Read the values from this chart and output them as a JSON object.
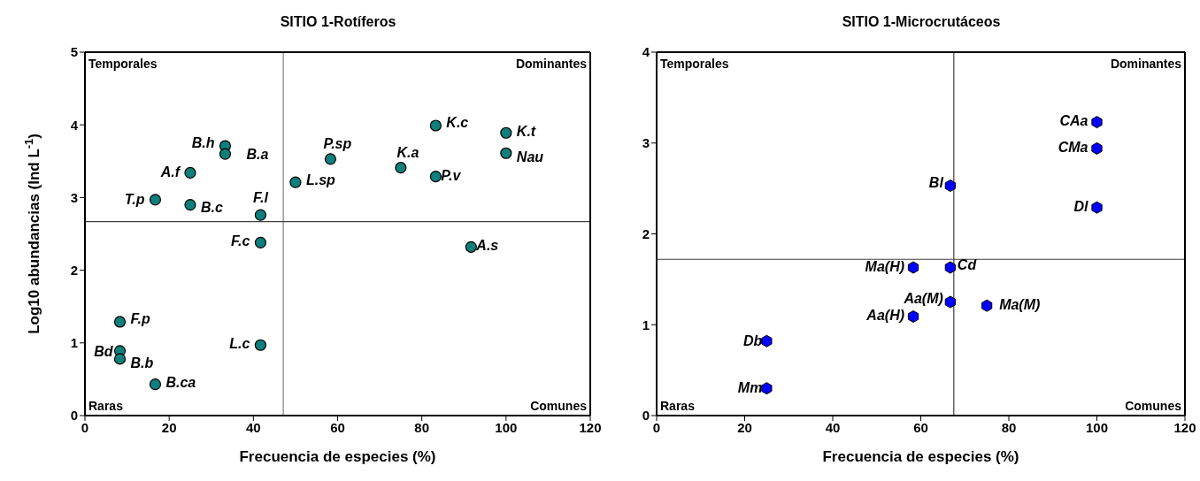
{
  "chart_data": [
    {
      "type": "scatter",
      "title": "SITIO 1-Rotíferos",
      "xlabel": "Frecuencia de especies (%)",
      "ylabel": "Log10 abundancias (Ind L$^{-1}$)",
      "xlim": [
        0,
        120
      ],
      "xticks": [
        0,
        20,
        40,
        60,
        80,
        100,
        120
      ],
      "ylim": [
        0,
        5
      ],
      "yticks": [
        0,
        1,
        2,
        3,
        4,
        5
      ],
      "marker": "circle",
      "series": [
        {
          "color": "#0e7f7a",
          "x": [
            16.7,
            25,
            25,
            33.3,
            33.3,
            41.7,
            41.7,
            41.7,
            8.3,
            8.3,
            8.3,
            16.7,
            50,
            58.3,
            75,
            83.3,
            83.3,
            91.7,
            100,
            100
          ],
          "values": [
            2.97,
            2.9,
            3.34,
            3.71,
            3.6,
            2.76,
            2.38,
            0.97,
            1.29,
            0.89,
            0.78,
            0.43,
            3.21,
            3.53,
            3.41,
            3.99,
            3.29,
            2.32,
            3.89,
            3.61
          ]
        }
      ],
      "ref_lines": [
        {
          "axis": "x",
          "value": 47.1,
          "color": "#808080"
        },
        {
          "axis": "y",
          "value": 2.67,
          "color": "#404040"
        }
      ],
      "annotations": [
        "Temporales",
        "Dominantes",
        "Raras",
        "Comunes",
        {
          "text": "T.p",
          "x": 16.7,
          "y": 2.97
        },
        {
          "text": "B.c",
          "x": 25,
          "y": 2.9
        },
        {
          "text": "A.f",
          "x": 25,
          "y": 3.34
        },
        {
          "text": "B.h",
          "x": 33.3,
          "y": 3.71
        },
        {
          "text": "B.a",
          "x": 33.3,
          "y": 3.6
        },
        {
          "text": "F.l",
          "x": 41.7,
          "y": 2.76
        },
        {
          "text": "F.c",
          "x": 41.7,
          "y": 2.38
        },
        {
          "text": "L.c",
          "x": 41.7,
          "y": 0.97
        },
        {
          "text": "F.p",
          "x": 8.3,
          "y": 1.29
        },
        {
          "text": "Bd",
          "x": 8.3,
          "y": 0.89
        },
        {
          "text": "B.b",
          "x": 8.3,
          "y": 0.78
        },
        {
          "text": "B.ca",
          "x": 16.7,
          "y": 0.43
        },
        {
          "text": "L.sp",
          "x": 50,
          "y": 3.21
        },
        {
          "text": "P.sp",
          "x": 58.3,
          "y": 3.53
        },
        {
          "text": "K.a",
          "x": 75,
          "y": 3.41
        },
        {
          "text": "K.c",
          "x": 83.3,
          "y": 3.99
        },
        {
          "text": "P.v",
          "x": 83.3,
          "y": 3.29
        },
        {
          "text": "A.s",
          "x": 91.7,
          "y": 2.32
        },
        {
          "text": "K.t",
          "x": 100,
          "y": 3.89
        },
        {
          "text": "Nau",
          "x": 100,
          "y": 3.61
        }
      ]
    },
    {
      "type": "scatter",
      "title": "SITIO 1-Microcrutáceos",
      "xlabel": "Frecuencia de especies (%)",
      "xlim": [
        0,
        120
      ],
      "xticks": [
        0,
        20,
        40,
        60,
        80,
        100,
        120
      ],
      "ylim": [
        0,
        4
      ],
      "yticks": [
        0,
        1,
        2,
        3,
        4
      ],
      "series": [
        {
          "color": "#0000ff",
          "x": [
            100,
            100,
            100,
            66.7,
            66.7,
            58.3,
            66.7,
            58.3,
            75,
            25,
            25
          ],
          "values": [
            3.23,
            2.94,
            2.29,
            2.53,
            1.63,
            1.63,
            1.25,
            1.09,
            1.21,
            0.82,
            0.3
          ]
        }
      ],
      "ref_lines": [
        {
          "axis": "x",
          "value": 67.5,
          "color": "#404040"
        },
        {
          "axis": "y",
          "value": 1.72,
          "color": "#404040"
        }
      ],
      "annotations": [
        "Temporales",
        "Dominantes",
        "Raras",
        "Comunes",
        {
          "text": "CAa",
          "x": 100,
          "y": 3.23
        },
        {
          "text": "CMa",
          "x": 100,
          "y": 2.94
        },
        {
          "text": "Dl",
          "x": 100,
          "y": 2.29
        },
        {
          "text": "Bl",
          "x": 66.7,
          "y": 2.53
        },
        {
          "text": "Cd",
          "x": 66.7,
          "y": 1.63
        },
        {
          "text": "Ma(H)",
          "x": 58.3,
          "y": 1.63
        },
        {
          "text": "Aa(M)",
          "x": 66.7,
          "y": 1.25
        },
        {
          "text": "Aa(H)",
          "x": 58.3,
          "y": 1.09
        },
        {
          "text": "Ma(M)",
          "x": 75,
          "y": 1.21
        },
        {
          "text": "Db",
          "x": 25,
          "y": 0.82
        },
        {
          "text": "Mm",
          "x": 25,
          "y": 0.3
        }
      ]
    }
  ]
}
